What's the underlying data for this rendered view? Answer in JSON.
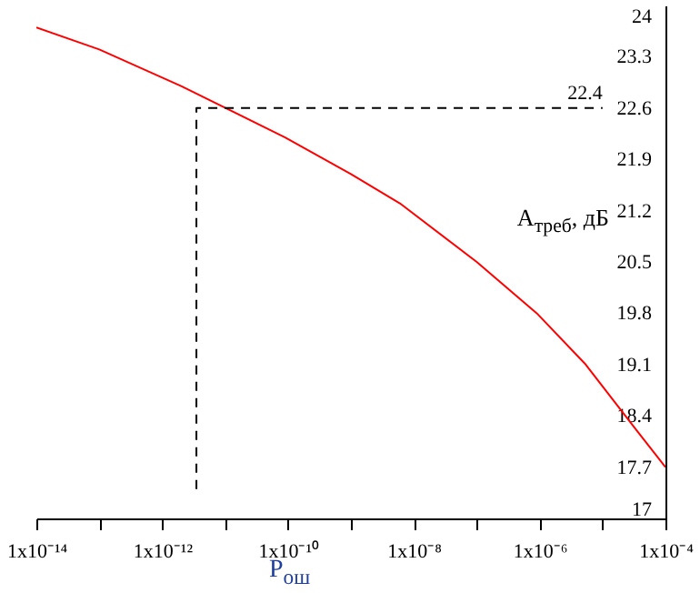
{
  "chart_data": {
    "type": "line",
    "xlabel": "P$_{ош}$",
    "ylabel": "A$_{треб}$, дБ",
    "log": "x",
    "series": [
      {
        "color": "#ff0000",
        "x": [
          1e-14,
          1e-13,
          2e-12,
          9e-11,
          1e-09,
          6e-09,
          1e-07,
          9e-07,
          5.4e-06,
          3.5e-05,
          0.0001
        ],
        "values": [
          23.7,
          23.4,
          22.9,
          22.2,
          21.7,
          21.3,
          20.5,
          19.8,
          19.1,
          18.2,
          17.7
        ]
      },
      {
        "color": "#000000",
        "line_style": "dashed",
        "x": [
          3.5e-12,
          3.5e-12,
          1e-05
        ],
        "values": [
          17.4,
          22.6,
          22.6
        ]
      }
    ],
    "annotations": [
      "22.4"
    ],
    "xlim": [
      1e-14,
      0.0001
    ],
    "xticks": [
      {
        "value": 1e-14,
        "label": "1x10⁻¹⁴"
      },
      {
        "value": 1e-13,
        "label": null
      },
      {
        "value": 1e-12,
        "label": "1x10⁻¹²"
      },
      {
        "value": 1e-11,
        "label": null
      },
      {
        "value": 1e-10,
        "label": "1x10⁻¹⁰"
      },
      {
        "value": 1e-09,
        "label": null
      },
      {
        "value": 1e-08,
        "label": "1x10⁻⁸"
      },
      {
        "value": 1e-07,
        "label": null
      },
      {
        "value": 1e-06,
        "label": "1x10⁻⁶"
      },
      {
        "value": 1e-05,
        "label": null
      },
      {
        "value": 0.0001,
        "label": "1x10⁻⁴"
      }
    ],
    "ylim": [
      17,
      24
    ],
    "yticks": [
      17,
      17.7,
      18.4,
      19.1,
      19.8,
      20.5,
      21.2,
      21.9,
      22.6,
      23.3,
      24
    ],
    "grid": false
  }
}
